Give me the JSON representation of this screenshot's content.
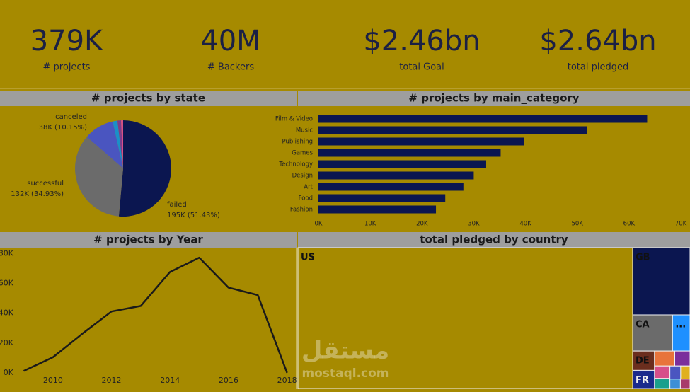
{
  "kpis": [
    {
      "value": "379K",
      "label": "# projects"
    },
    {
      "value": "40M",
      "label": "# Backers"
    },
    {
      "value": "$2.46bn",
      "label": "total Goal"
    },
    {
      "value": "$2.64bn",
      "label": "total pledged"
    }
  ],
  "chart_data": [
    {
      "type": "pie",
      "title": "# projects by state",
      "categories": [
        "failed",
        "successful",
        "canceled",
        null,
        null,
        null
      ],
      "values": [
        51.43,
        34.93,
        10.15,
        1.6,
        1.2,
        0.69
      ],
      "value_labels": [
        "195K (51.43%)",
        "132K (34.93%)",
        "38K (10.15%)",
        null,
        null,
        null
      ],
      "colors": [
        "#0b1650",
        "#6b6b6b",
        "#4a55c0",
        "#1a8fc8",
        "#7b3c8c",
        "#d64f8a"
      ]
    },
    {
      "type": "bar",
      "title": "# projects by main_category",
      "categories": [
        "Film & Video",
        "Music",
        "Publishing",
        "Games",
        "Technology",
        "Design",
        "Art",
        "Food",
        "Fashion"
      ],
      "values": [
        63500,
        51900,
        39700,
        35200,
        32400,
        30000,
        28000,
        24500,
        22700
      ],
      "color": "#0b1650",
      "xlim": [
        0,
        70000
      ],
      "xticks": [
        {
          "value": 0,
          "label": "0K"
        },
        {
          "value": 10000,
          "label": "10K"
        },
        {
          "value": 20000,
          "label": "20K"
        },
        {
          "value": 30000,
          "label": "30K"
        },
        {
          "value": 40000,
          "label": "40K"
        },
        {
          "value": 50000,
          "label": "50K"
        },
        {
          "value": 60000,
          "label": "60K"
        },
        {
          "value": 70000,
          "label": "70K"
        }
      ]
    },
    {
      "type": "line",
      "title": "# projects by Year",
      "x": [
        2009,
        2010,
        2011,
        2012,
        2013,
        2014,
        2015,
        2016,
        2017,
        2018
      ],
      "values": [
        1300,
        10500,
        26200,
        41200,
        44900,
        67700,
        77300,
        57200,
        52200,
        100
      ],
      "color": "#1a1a1a",
      "xlim": [
        2008.19,
        2018.3
      ],
      "xticks": [
        2010,
        2012,
        2014,
        2016,
        2018
      ],
      "ylim": [
        0,
        84000
      ],
      "yticks": [
        {
          "value": 0,
          "label": "0K"
        },
        {
          "value": 20000,
          "label": "20K"
        },
        {
          "value": 40000,
          "label": "40K"
        },
        {
          "value": 60000,
          "label": "60K"
        },
        {
          "value": 80000,
          "label": "80K"
        }
      ]
    },
    {
      "type": "treemap",
      "title": "total pledged by country",
      "categories": [
        "US",
        "GB",
        "CA",
        "...",
        "DE",
        "FR",
        null,
        null,
        null,
        null,
        null,
        null,
        null,
        null
      ],
      "values": [
        2250000000,
        183000000,
        68500000,
        30000000,
        20000000,
        19500000,
        14400000,
        10800000,
        9100000,
        7900000,
        6700000,
        5800000,
        5000000,
        4600000
      ],
      "colors": [
        "#a68a00",
        "#0b1650",
        "#6b6b6b",
        "#1e90ff",
        "#6b2e1e",
        "#1a2a8c",
        "#e8743b",
        "#7b2e9c",
        "#d64f8a",
        "#1aa08c",
        "#4a55c0",
        "#e0b020",
        "#3c8fd6",
        "#a83a6a"
      ]
    }
  ],
  "watermark": {
    "arabic": "مستقل",
    "latin": "mostaql.com"
  }
}
